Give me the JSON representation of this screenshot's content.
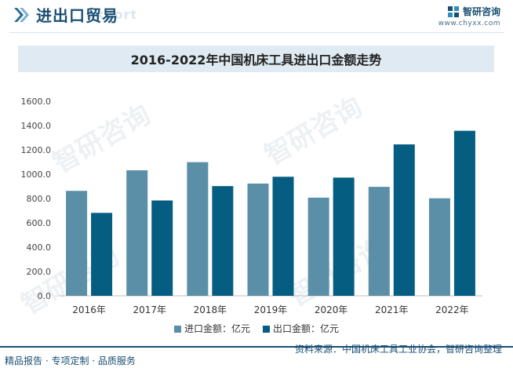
{
  "header": {
    "title": "进出口贸易",
    "bg_word": "export",
    "brand_name": "智研咨询",
    "brand_url": "www.chyxx.com"
  },
  "watermark_text": "智研咨询",
  "chart_data": {
    "type": "bar",
    "title": "2016-2022年中国机床工具进出口金额走势",
    "categories": [
      "2016年",
      "2017年",
      "2018年",
      "2019年",
      "2020年",
      "2021年",
      "2022年"
    ],
    "series": [
      {
        "name": "进口金额：亿元",
        "color": "#5b8fa8",
        "values": [
          863,
          1032,
          1099,
          923,
          807,
          896,
          802
        ]
      },
      {
        "name": "出口金额：亿元",
        "color": "#055e82",
        "values": [
          682,
          784,
          902,
          979,
          972,
          1245,
          1357
        ]
      }
    ],
    "yticks": [
      "0.0",
      "200.0",
      "400.0",
      "600.0",
      "800.0",
      "1000.0",
      "1200.0",
      "1400.0",
      "1600.0"
    ],
    "ylim": [
      0,
      1600
    ],
    "legend": "bottom",
    "grid": false
  },
  "footer": {
    "left": "精品报告 · 专项定制 · 品质服务",
    "source": "资料来源：中国机床工具工业协会，智研咨询整理"
  }
}
